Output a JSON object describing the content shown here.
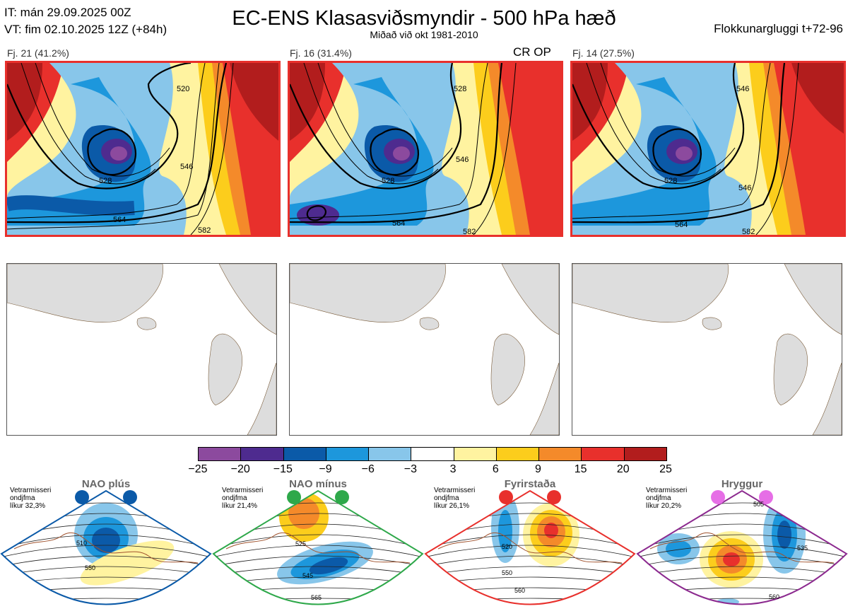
{
  "header": {
    "it": "IT: mán 29.09.2025 00Z",
    "vt": "VT: fim 02.10.2025 12Z  (+84h)",
    "title": "EC-ENS Klasasviðsmyndir - 500 hPa hæð",
    "subtitle": "Miðað við okt 1981-2010",
    "window": "Flokkunargluggi t+72-96"
  },
  "panels": [
    {
      "label": "Fj. 21 (41.2%)",
      "contours": {
        "c528": "528",
        "c546": "546",
        "c564": "564",
        "c582": "582",
        "c520": "520"
      }
    },
    {
      "label": "Fj. 16 (31.4%)",
      "tag": "CR OP",
      "contours": {
        "c528": "528",
        "c546": "546",
        "c564": "564",
        "c582": "582",
        "c520": "528"
      }
    },
    {
      "label": "Fj. 14 (27.5%)",
      "contours": {
        "c528": "528",
        "c546": "546",
        "c564": "564",
        "c582": "582",
        "c520": "546"
      }
    }
  ],
  "colorbar": {
    "colors": [
      "#8c4a9e",
      "#4e2b8f",
      "#0b5aa8",
      "#1d97dc",
      "#88c6ea",
      "#ffffff",
      "#fff3a0",
      "#fccd1c",
      "#f48a2a",
      "#e8302c",
      "#b21d1d"
    ],
    "ticks": [
      "−25",
      "−20",
      "−15",
      "−9",
      "−6",
      "−3",
      "3",
      "6",
      "9",
      "15",
      "20",
      "25"
    ]
  },
  "regimes": [
    {
      "name": "NAO plús",
      "note": [
        "Vetrarmisseri",
        "ondjfma",
        "líkur 32,3%"
      ],
      "color": "#0b5aa8",
      "dot": "#0b5aa8",
      "labels": [
        "510",
        "550"
      ]
    },
    {
      "name": "NAO mínus",
      "note": [
        "Vetrarmisseri",
        "ondjfma",
        "líkur 21,4%"
      ],
      "color": "#2ea84a",
      "dot": "#2ea84a",
      "labels": [
        "525",
        "545",
        "565"
      ]
    },
    {
      "name": "Fyrirstaða",
      "note": [
        "Vetrarmisseri",
        "ondjfma",
        "líkur 26,1%"
      ],
      "color": "#e8302c",
      "dot": "#e8302c",
      "labels": [
        "520",
        "550",
        "560"
      ]
    },
    {
      "name": "Hryggur",
      "note": [
        "Vetrarmisseri",
        "ondjfma",
        "líkur 20,2%"
      ],
      "color": "#8c2a8f",
      "dot": "#e66ee6",
      "labels": [
        "505",
        "535",
        "560"
      ]
    }
  ]
}
